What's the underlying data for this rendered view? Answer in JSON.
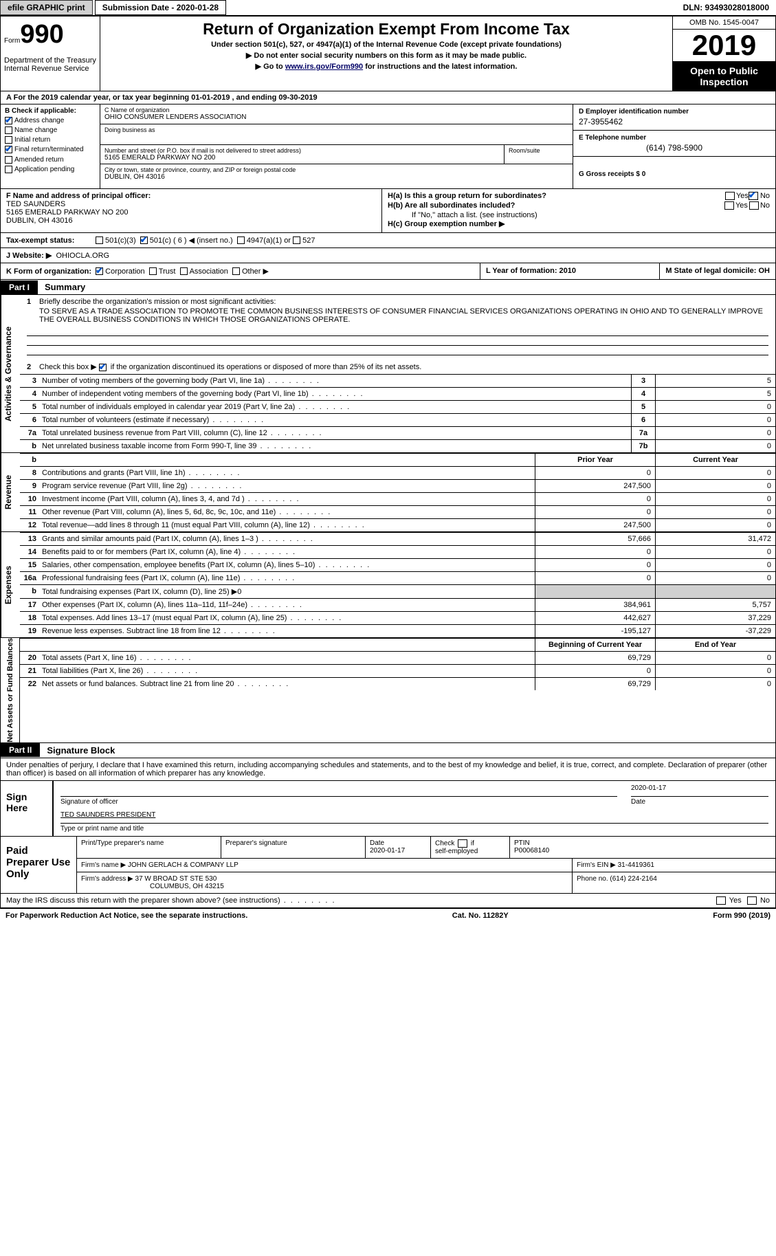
{
  "topbar": {
    "efile_btn": "efile GRAPHIC print",
    "submission_label": "Submission Date - 2020-01-28",
    "dln": "DLN: 93493028018000"
  },
  "header": {
    "form_prefix": "Form",
    "form_num": "990",
    "dept": "Department of the Treasury Internal Revenue Service",
    "title": "Return of Organization Exempt From Income Tax",
    "subtitle": "Under section 501(c), 527, or 4947(a)(1) of the Internal Revenue Code (except private foundations)",
    "line1": "▶ Do not enter social security numbers on this form as it may be made public.",
    "line2_pre": "▶ Go to ",
    "line2_link": "www.irs.gov/Form990",
    "line2_post": " for instructions and the latest information.",
    "omb": "OMB No. 1545-0047",
    "year": "2019",
    "open": "Open to Public Inspection"
  },
  "a_line": "For the 2019 calendar year, or tax year beginning 01-01-2019    , and ending 09-30-2019",
  "section_b": {
    "title": "B Check if applicable:",
    "items": [
      {
        "label": "Address change",
        "checked": true
      },
      {
        "label": "Name change",
        "checked": false
      },
      {
        "label": "Initial return",
        "checked": false
      },
      {
        "label": "Final return/terminated",
        "checked": true
      },
      {
        "label": "Amended return",
        "checked": false
      },
      {
        "label": "Application pending",
        "checked": false
      }
    ]
  },
  "section_c": {
    "name_label": "C Name of organization",
    "name": "OHIO CONSUMER LENDERS ASSOCIATION",
    "dba_label": "Doing business as",
    "dba": "",
    "addr_label": "Number and street (or P.O. box if mail is not delivered to street address)",
    "addr": "5165 EMERALD PARKWAY NO 200",
    "room_label": "Room/suite",
    "city_label": "City or town, state or province, country, and ZIP or foreign postal code",
    "city": "DUBLIN, OH   43016"
  },
  "section_d": {
    "label": "D Employer identification number",
    "value": "27-3955462"
  },
  "section_e": {
    "label": "E Telephone number",
    "value": "(614) 798-5900"
  },
  "section_g": {
    "label": "G Gross receipts $ 0"
  },
  "section_f": {
    "label": "F  Name and address of principal officer:",
    "name": "TED SAUNDERS",
    "addr1": "5165 EMERALD PARKWAY NO 200",
    "addr2": "DUBLIN, OH  43016"
  },
  "section_h": {
    "ha_label": "H(a)  Is this a group return for subordinates?",
    "hb_label": "H(b)  Are all subordinates included?",
    "hb_note": "If \"No,\" attach a list. (see instructions)",
    "hc_label": "H(c)  Group exemption number ▶",
    "yes": "Yes",
    "no": "No"
  },
  "section_i": {
    "label": "Tax-exempt status:",
    "opts": [
      "501(c)(3)",
      "501(c) ( 6 ) ◀ (insert no.)",
      "4947(a)(1) or",
      "527"
    ]
  },
  "section_j": {
    "label": "J   Website: ▶",
    "value": "OHIOCLA.ORG"
  },
  "section_k": {
    "label": "K Form of organization:",
    "opts": [
      "Corporation",
      "Trust",
      "Association",
      "Other ▶"
    ]
  },
  "section_l": {
    "label": "L Year of formation: 2010"
  },
  "section_m": {
    "label": "M State of legal domicile: OH"
  },
  "part1": {
    "num": "Part I",
    "title": "Summary"
  },
  "mission": {
    "num": "1",
    "label": "Briefly describe the organization's mission or most significant activities:",
    "text": "TO SERVE AS A TRADE ASSOCIATION TO PROMOTE THE COMMON BUSINESS INTERESTS OF CONSUMER FINANCIAL SERVICES ORGANIZATIONS OPERATING IN OHIO AND TO GENERALLY IMPROVE THE OVERALL BUSINESS CONDITIONS IN WHICH THOSE ORGANIZATIONS OPERATE."
  },
  "line2_check": {
    "num": "2",
    "text": "Check this box ▶       if the organization discontinued its operations or disposed of more than 25% of its net assets."
  },
  "gov_rows": [
    {
      "n": "3",
      "label": "Number of voting members of the governing body (Part VI, line 1a)",
      "box": "3",
      "val": "5"
    },
    {
      "n": "4",
      "label": "Number of independent voting members of the governing body (Part VI, line 1b)",
      "box": "4",
      "val": "5"
    },
    {
      "n": "5",
      "label": "Total number of individuals employed in calendar year 2019 (Part V, line 2a)",
      "box": "5",
      "val": "0"
    },
    {
      "n": "6",
      "label": "Total number of volunteers (estimate if necessary)",
      "box": "6",
      "val": "0"
    },
    {
      "n": "7a",
      "label": "Total unrelated business revenue from Part VIII, column (C), line 12",
      "box": "7a",
      "val": "0"
    },
    {
      "n": "b",
      "label": "Net unrelated business taxable income from Form 990-T, line 39",
      "box": "7b",
      "val": "0"
    }
  ],
  "vtabs": {
    "act_gov": "Activities & Governance",
    "revenue": "Revenue",
    "expenses": "Expenses",
    "net": "Net Assets or Fund Balances"
  },
  "col_hdrs": {
    "prior": "Prior Year",
    "current": "Current Year",
    "begin": "Beginning of Current Year",
    "end": "End of Year"
  },
  "rev_rows": [
    {
      "n": "8",
      "label": "Contributions and grants (Part VIII, line 1h)",
      "v1": "0",
      "v2": "0"
    },
    {
      "n": "9",
      "label": "Program service revenue (Part VIII, line 2g)",
      "v1": "247,500",
      "v2": "0"
    },
    {
      "n": "10",
      "label": "Investment income (Part VIII, column (A), lines 3, 4, and 7d )",
      "v1": "0",
      "v2": "0"
    },
    {
      "n": "11",
      "label": "Other revenue (Part VIII, column (A), lines 5, 6d, 8c, 9c, 10c, and 11e)",
      "v1": "0",
      "v2": "0"
    },
    {
      "n": "12",
      "label": "Total revenue—add lines 8 through 11 (must equal Part VIII, column (A), line 12)",
      "v1": "247,500",
      "v2": "0"
    }
  ],
  "exp_rows": [
    {
      "n": "13",
      "label": "Grants and similar amounts paid (Part IX, column (A), lines 1–3 )",
      "v1": "57,666",
      "v2": "31,472"
    },
    {
      "n": "14",
      "label": "Benefits paid to or for members (Part IX, column (A), line 4)",
      "v1": "0",
      "v2": "0"
    },
    {
      "n": "15",
      "label": "Salaries, other compensation, employee benefits (Part IX, column (A), lines 5–10)",
      "v1": "0",
      "v2": "0"
    },
    {
      "n": "16a",
      "label": "Professional fundraising fees (Part IX, column (A), line 11e)",
      "v1": "0",
      "v2": "0"
    },
    {
      "n": "b",
      "label": "Total fundraising expenses (Part IX, column (D), line 25) ▶0",
      "v1": "grey",
      "v2": "grey"
    },
    {
      "n": "17",
      "label": "Other expenses (Part IX, column (A), lines 11a–11d, 11f–24e)",
      "v1": "384,961",
      "v2": "5,757"
    },
    {
      "n": "18",
      "label": "Total expenses. Add lines 13–17 (must equal Part IX, column (A), line 25)",
      "v1": "442,627",
      "v2": "37,229"
    },
    {
      "n": "19",
      "label": "Revenue less expenses. Subtract line 18 from line 12",
      "v1": "-195,127",
      "v2": "-37,229"
    }
  ],
  "net_rows": [
    {
      "n": "20",
      "label": "Total assets (Part X, line 16)",
      "v1": "69,729",
      "v2": "0"
    },
    {
      "n": "21",
      "label": "Total liabilities (Part X, line 26)",
      "v1": "0",
      "v2": "0"
    },
    {
      "n": "22",
      "label": "Net assets or fund balances. Subtract line 21 from line 20",
      "v1": "69,729",
      "v2": "0"
    }
  ],
  "part2": {
    "num": "Part II",
    "title": "Signature Block"
  },
  "sig_intro": "Under penalties of perjury, I declare that I have examined this return, including accompanying schedules and statements, and to the best of my knowledge and belief, it is true, correct, and complete. Declaration of preparer (other than officer) is based on all information of which preparer has any knowledge.",
  "sign": {
    "label": "Sign Here",
    "sig_label": "Signature of officer",
    "date_label": "Date",
    "date": "2020-01-17",
    "name": "TED SAUNDERS PRESIDENT",
    "name_label": "Type or print name and title"
  },
  "paid": {
    "label": "Paid Preparer Use Only",
    "r1": {
      "c1_lbl": "Print/Type preparer's name",
      "c2_lbl": "Preparer's signature",
      "c3_lbl": "Date",
      "c3_val": "2020-01-17",
      "c4_lbl": "Check      if self-employed",
      "c5_lbl": "PTIN",
      "c5_val": "P00068140"
    },
    "r2": {
      "c1_lbl": "Firm's name     ▶",
      "c1_val": "JOHN GERLACH & COMPANY LLP",
      "c2_lbl": "Firm's EIN ▶",
      "c2_val": "31-4419361"
    },
    "r3": {
      "c1_lbl": "Firm's address ▶",
      "c1_val1": "37 W BROAD ST STE 530",
      "c1_val2": "COLUMBUS, OH  43215",
      "c2_lbl": "Phone no.",
      "c2_val": "(614) 224-2164"
    }
  },
  "irs_discuss": "May the IRS discuss this return with the preparer shown above? (see instructions)",
  "footer": {
    "left": "For Paperwork Reduction Act Notice, see the separate instructions.",
    "mid": "Cat. No. 11282Y",
    "right": "Form 990 (2019)"
  }
}
